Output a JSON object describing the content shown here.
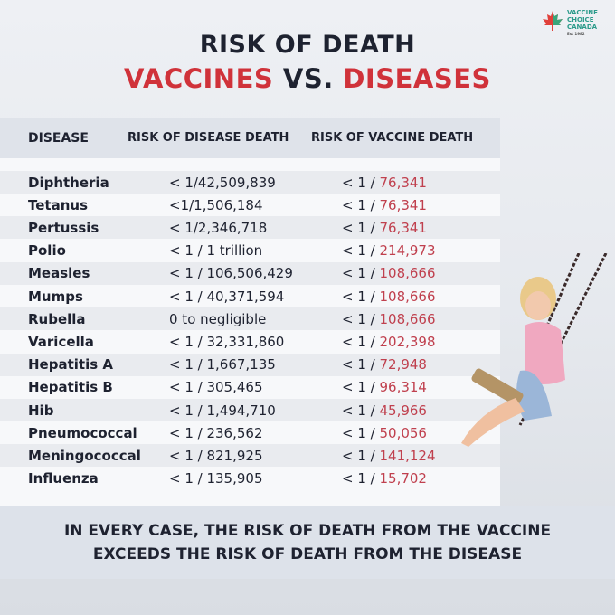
{
  "logo": {
    "line1": "VACCINE",
    "line2": "CHOICE",
    "line3": "CANADA",
    "est": "Est 1982"
  },
  "title": {
    "line1": "RISK OF DEATH",
    "part1": "VACCINES",
    "part2": "VS.",
    "part3": "DISEASES"
  },
  "colors": {
    "accent": "#d0323a",
    "vaccine_value": "#c0404e",
    "header_bg": "#dfe3ea"
  },
  "table": {
    "headers": [
      "DISEASE",
      "RISK OF DISEASE DEATH",
      "RISK OF VACCINE DEATH"
    ],
    "rows": [
      {
        "disease": "Diphtheria",
        "disease_risk": "< 1/42,509,839",
        "prefix": "< 1 / ",
        "vaccine_risk": "76,341"
      },
      {
        "disease": "Tetanus",
        "disease_risk": "<1/1,506,184",
        "prefix": "< 1 / ",
        "vaccine_risk": "76,341"
      },
      {
        "disease": "Pertussis",
        "disease_risk": "< 1/2,346,718",
        "prefix": "< 1 / ",
        "vaccine_risk": "76,341"
      },
      {
        "disease": "Polio",
        "disease_risk": "< 1 / 1 trillion",
        "prefix": "< 1 / ",
        "vaccine_risk": "214,973"
      },
      {
        "disease": "Measles",
        "disease_risk": "< 1 / 106,506,429",
        "prefix": "< 1 / ",
        "vaccine_risk": "108,666"
      },
      {
        "disease": "Mumps",
        "disease_risk": "< 1 / 40,371,594",
        "prefix": "< 1 / ",
        "vaccine_risk": "108,666"
      },
      {
        "disease": "Rubella",
        "disease_risk": "0 to negligible",
        "prefix": "< 1 / ",
        "vaccine_risk": "108,666"
      },
      {
        "disease": "Varicella",
        "disease_risk": "< 1 / 32,331,860",
        "prefix": "< 1 / ",
        "vaccine_risk": "202,398"
      },
      {
        "disease": "Hepatitis A",
        "disease_risk": "< 1 / 1,667,135",
        "prefix": "< 1 / ",
        "vaccine_risk": "72,948"
      },
      {
        "disease": "Hepatitis B",
        "disease_risk": "< 1 / 305,465",
        "prefix": "< 1 / ",
        "vaccine_risk": "96,314"
      },
      {
        "disease": "Hib",
        "disease_risk": "< 1 / 1,494,710",
        "prefix": "< 1 / ",
        "vaccine_risk": "45,966"
      },
      {
        "disease": "Pneumococcal",
        "disease_risk": "< 1 / 236,562",
        "prefix": "< 1 / ",
        "vaccine_risk": "50,056"
      },
      {
        "disease": "Meningococcal",
        "disease_risk": "< 1 / 821,925",
        "prefix": "< 1 / ",
        "vaccine_risk": "141,124"
      },
      {
        "disease": "Influenza",
        "disease_risk": "< 1 / 135,905",
        "prefix": "< 1 / ",
        "vaccine_risk": "15,702"
      }
    ]
  },
  "footer": {
    "line1": "IN EVERY CASE, THE RISK OF DEATH FROM THE VACCINE",
    "line2": "EXCEEDS THE RISK OF DEATH FROM THE DISEASE"
  }
}
